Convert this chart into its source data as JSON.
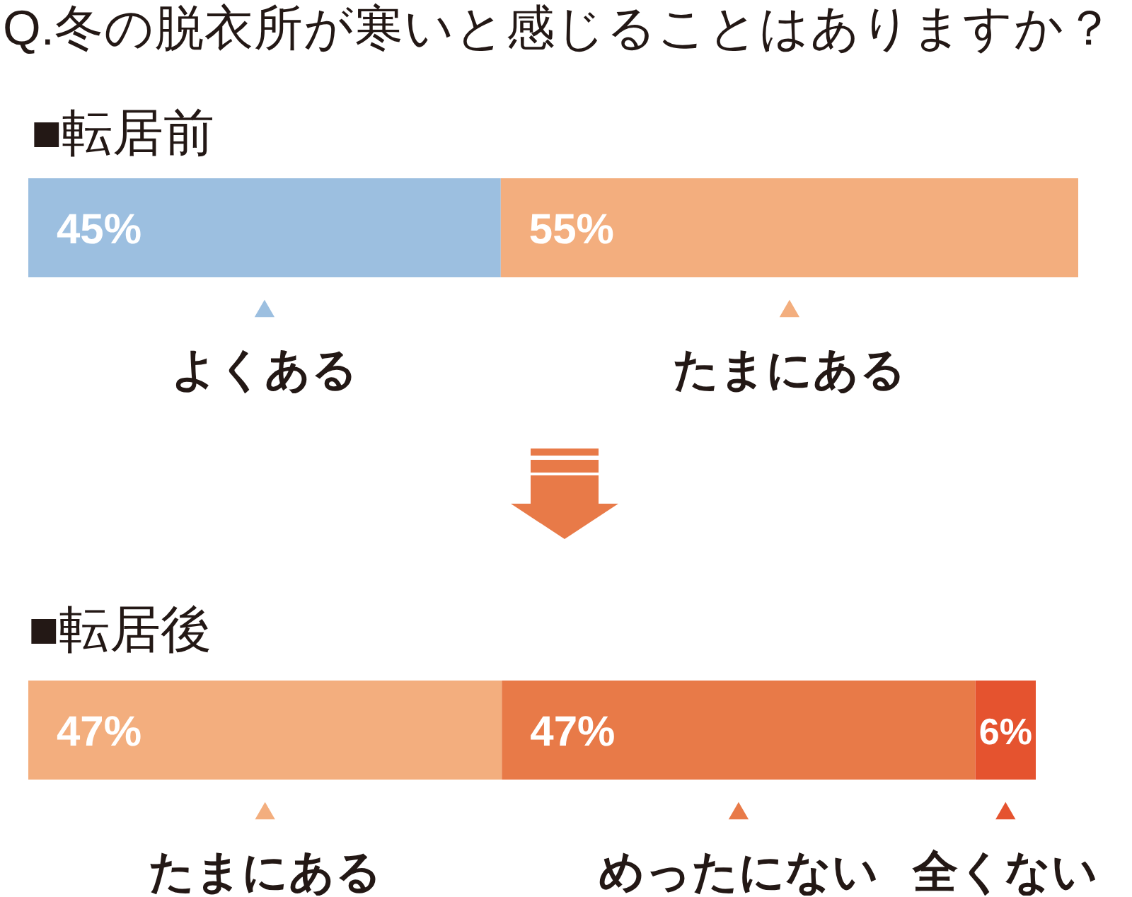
{
  "chart_data": [
    {
      "type": "bar",
      "title": "Q.冬の脱衣所が寒いと感じることはありますか？",
      "subtitle": "■転居前",
      "orientation": "horizontal",
      "stacked": true,
      "categories": [
        null
      ],
      "xlim": [
        0,
        100
      ],
      "tick_labels": false,
      "legend": "bottom",
      "series": [
        {
          "name": "よくある",
          "color": "#9cbfe0",
          "values": [
            45
          ],
          "value_labels": [
            "45%"
          ]
        },
        {
          "name": "たまにある",
          "color": "#f3ae7e",
          "values": [
            55
          ],
          "value_labels": [
            "55%"
          ]
        }
      ]
    },
    {
      "type": "bar",
      "title": "■転居後",
      "orientation": "horizontal",
      "stacked": true,
      "categories": [
        null
      ],
      "xlim": [
        0,
        100
      ],
      "tick_labels": false,
      "legend": "bottom",
      "series": [
        {
          "name": "たまにある",
          "color": "#f3ae7e",
          "values": [
            47
          ],
          "value_labels": [
            "47%"
          ]
        },
        {
          "name": "めったにない",
          "color": "#e87a48",
          "values": [
            47
          ],
          "value_labels": [
            "47%"
          ]
        },
        {
          "name": "全くない",
          "color": "#e5532f",
          "values": [
            6
          ],
          "value_labels": [
            "6%"
          ]
        }
      ]
    }
  ]
}
